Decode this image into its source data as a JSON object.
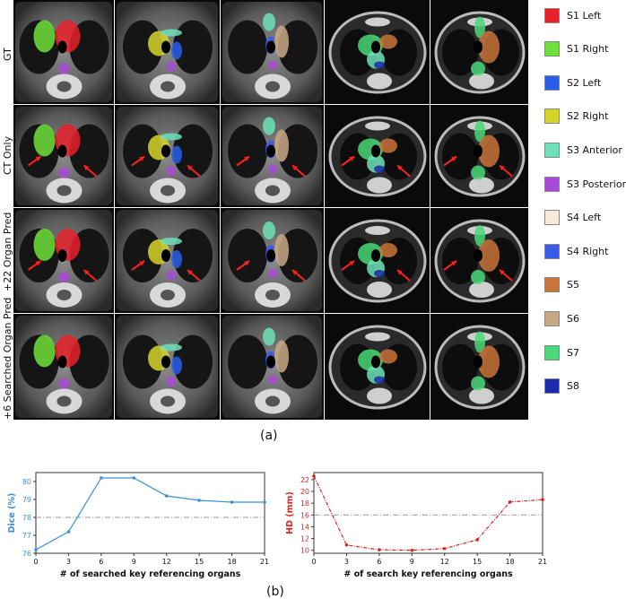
{
  "panel_a": {
    "caption": "(a)",
    "row_labels": [
      "GT",
      "CT Only",
      "+22 Organ Pred",
      "+6 Searched Organ Pred"
    ],
    "legend": [
      {
        "label": "S1 Left",
        "color": "#e8202a"
      },
      {
        "label": "S1 Right",
        "color": "#6fe03a"
      },
      {
        "label": "S2 Left",
        "color": "#2a5ee8"
      },
      {
        "label": "S2 Right",
        "color": "#d4d42a"
      },
      {
        "label": "S3 Anterior",
        "color": "#6fe0b8"
      },
      {
        "label": "S3 Posterior",
        "color": "#a84ad8"
      },
      {
        "label": "S4 Left",
        "color": "#f5ead8"
      },
      {
        "label": "S4 Right",
        "color": "#3a5ae8"
      },
      {
        "label": "S5",
        "color": "#c8743a"
      },
      {
        "label": "S6",
        "color": "#c8a884"
      },
      {
        "label": "S7",
        "color": "#4ad878"
      },
      {
        "label": "S8",
        "color": "#1a2aa8"
      }
    ]
  },
  "panel_b": {
    "caption": "(b)"
  },
  "chart_data": [
    {
      "type": "line",
      "xlabel": "# of searched key referencing organs",
      "ylabel": "Dice (%)",
      "x": [
        0,
        3,
        6,
        9,
        12,
        15,
        18,
        21
      ],
      "series": [
        {
          "values": [
            76.2,
            77.2,
            80.2,
            80.2,
            79.2,
            78.95,
            78.85,
            78.85
          ],
          "color": "#3a8fdc"
        }
      ],
      "reference_line": 78.0,
      "xticks": [
        0,
        3,
        6,
        9,
        12,
        15,
        18,
        21
      ],
      "yticks": [
        76,
        77,
        78,
        79,
        80
      ],
      "xlim": [
        0,
        21
      ],
      "ylim": [
        76,
        80.5
      ],
      "color": "#3a8fdc"
    },
    {
      "type": "line",
      "xlabel": "# of search key referencing organs",
      "ylabel": "HD (mm)",
      "x": [
        0,
        3,
        6,
        9,
        12,
        15,
        18,
        21
      ],
      "series": [
        {
          "values": [
            22.6,
            10.9,
            10.1,
            10.0,
            10.3,
            11.8,
            18.2,
            18.6
          ],
          "color": "#e0241e"
        }
      ],
      "reference_line": 16.0,
      "xticks": [
        0,
        3,
        6,
        9,
        12,
        15,
        18,
        21
      ],
      "yticks": [
        10,
        12,
        14,
        16,
        18,
        20,
        22
      ],
      "xlim": [
        0,
        21
      ],
      "ylim": [
        9.5,
        23.2
      ],
      "color": "#e0241e"
    }
  ]
}
